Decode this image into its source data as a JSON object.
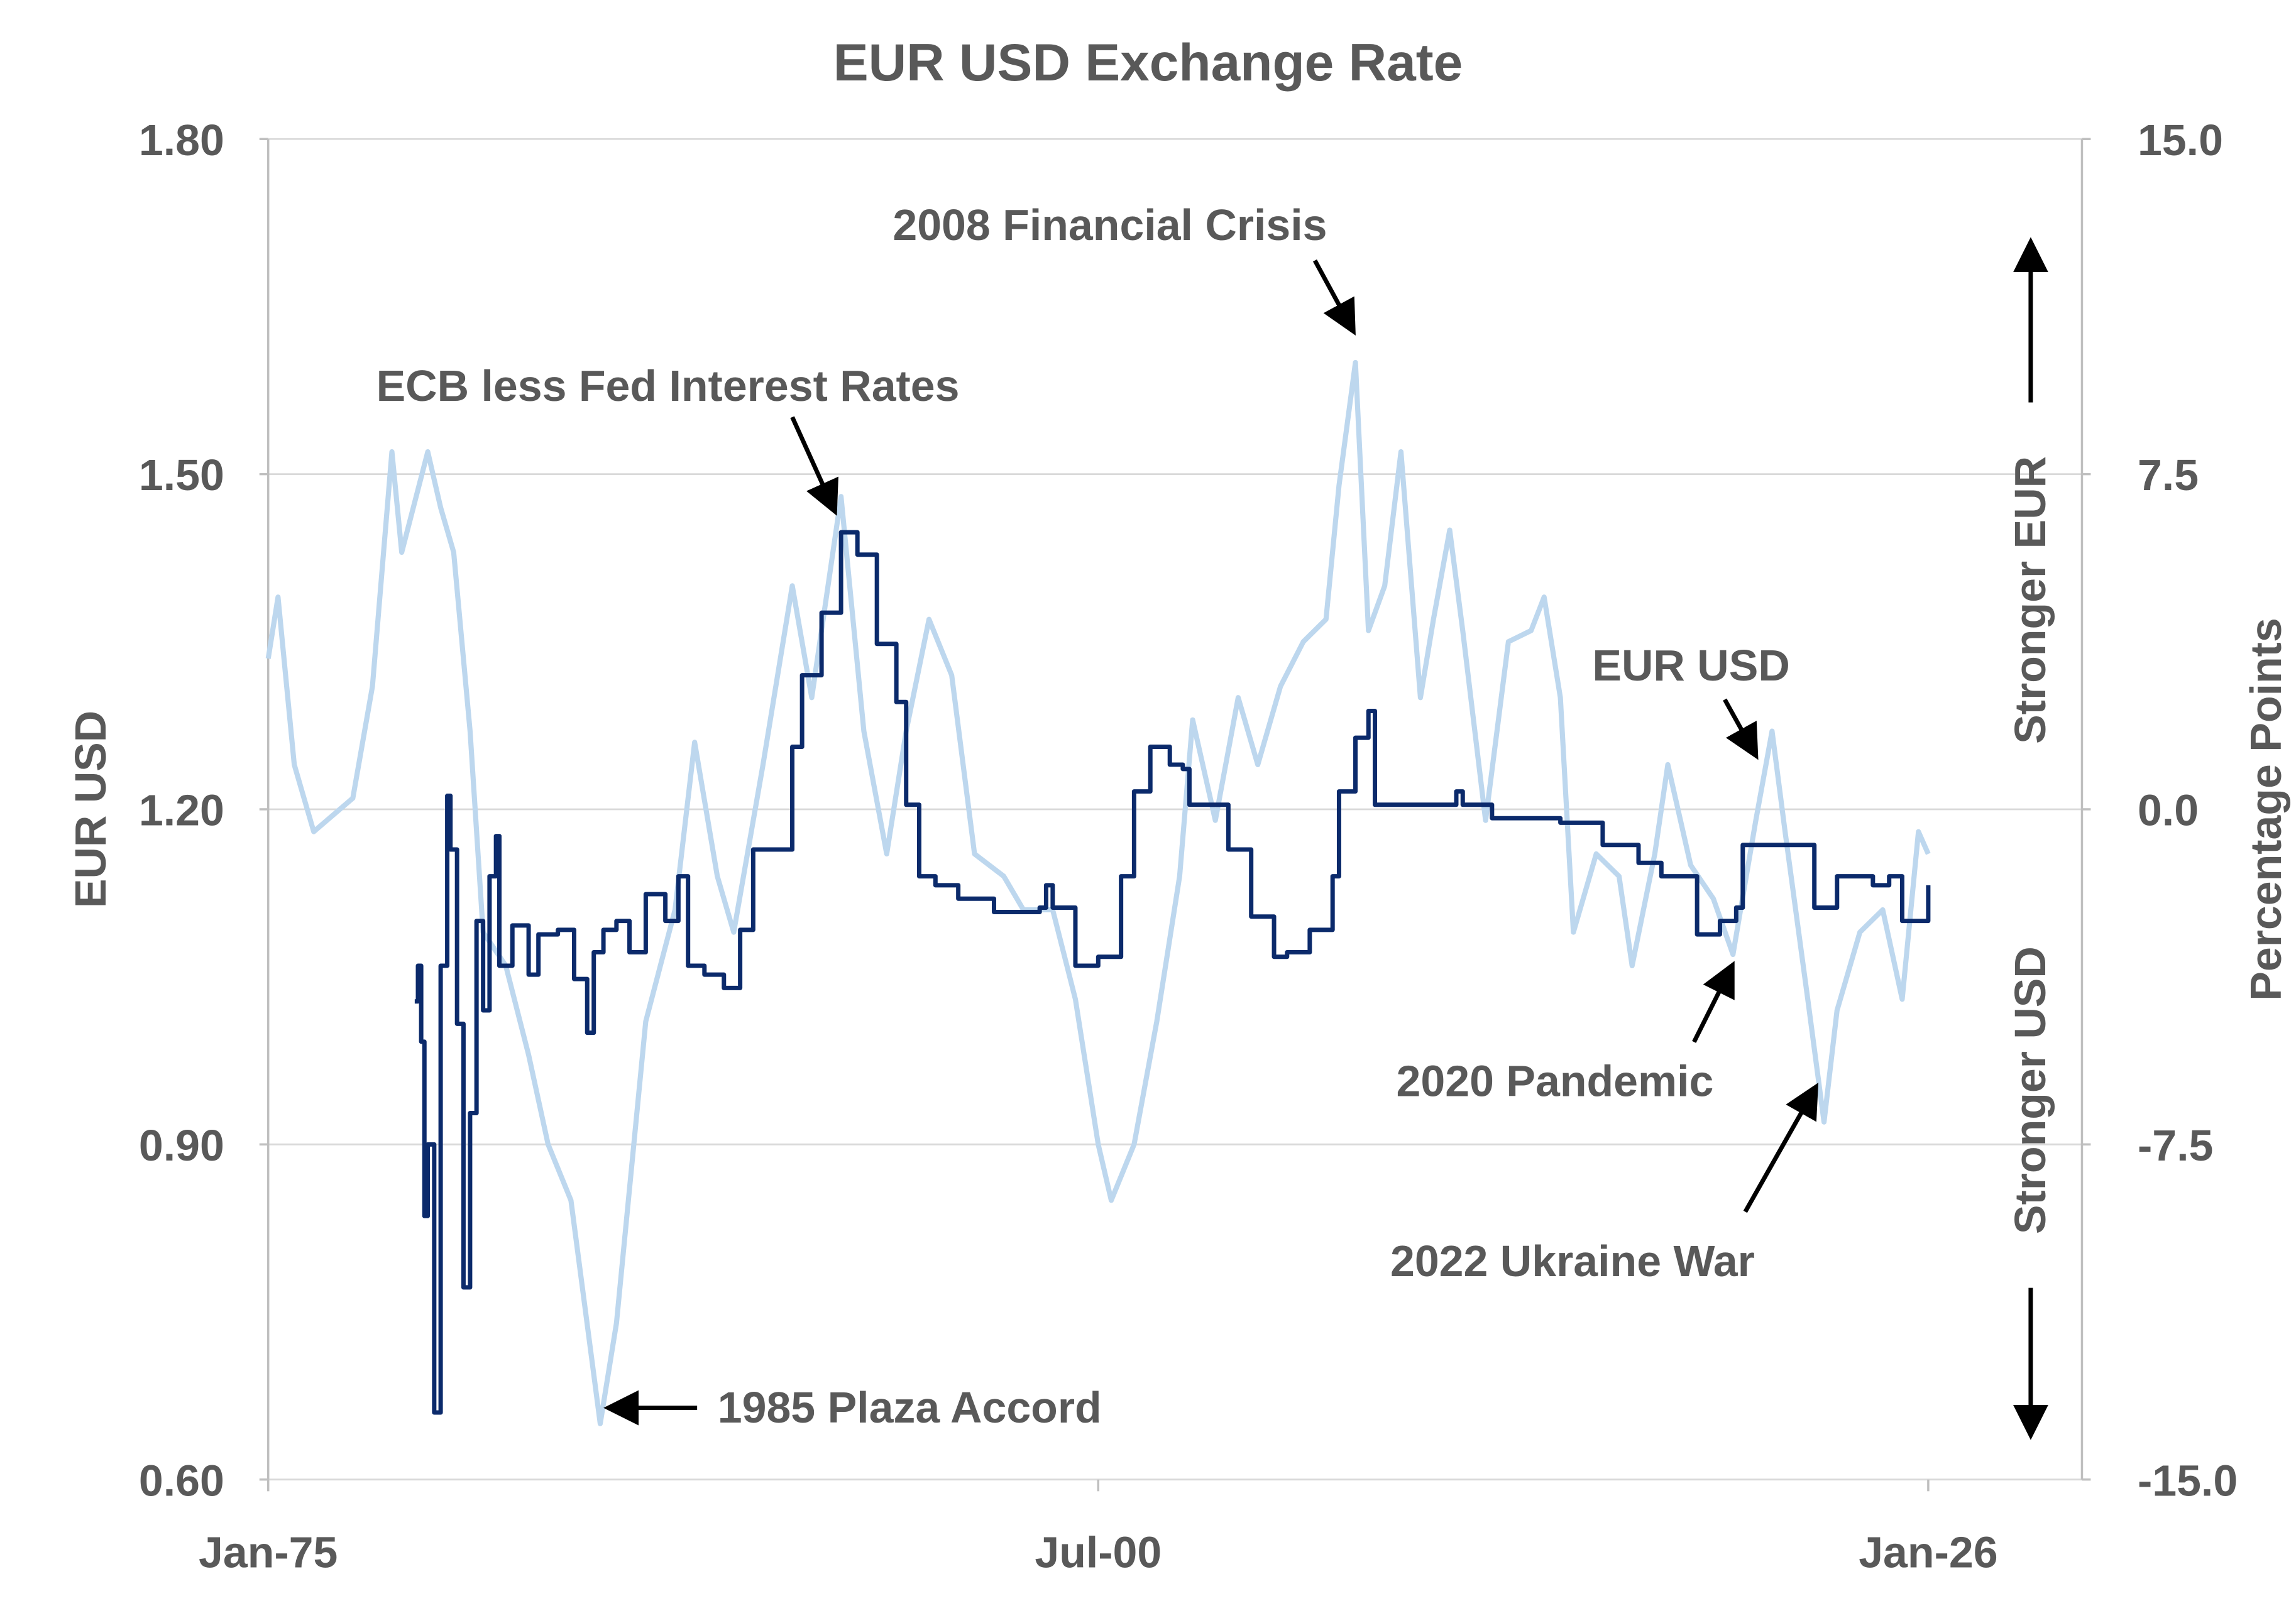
{
  "chart_data": {
    "type": "line",
    "title": "EUR USD Exchange Rate",
    "ylabel": "EUR USD",
    "y2label": "Percentage  Points",
    "xlim": [
      1975.0,
      2026.0
    ],
    "ylim": [
      0.6,
      1.8
    ],
    "y2lim": [
      -15.0,
      15.0
    ],
    "x_ticks": [
      {
        "label": "Jan-75",
        "x": 1975.0
      },
      {
        "label": "Jul-00",
        "x": 2000.5
      },
      {
        "label": "Jan-26",
        "x": 2026.0
      }
    ],
    "y_ticks": [
      {
        "label": "1.80",
        "v": 1.8
      },
      {
        "label": "1.50",
        "v": 1.5
      },
      {
        "label": "1.20",
        "v": 1.2
      },
      {
        "label": "0.90",
        "v": 0.9
      },
      {
        "label": "0.60",
        "v": 0.6
      }
    ],
    "y2_ticks": [
      {
        "label": "15.0",
        "v": 15
      },
      {
        "label": "7.5",
        "v": 7.5
      },
      {
        "label": "0.0",
        "v": 0
      },
      {
        "label": "-7.5",
        "v": -7.5
      },
      {
        "label": "-15.0",
        "v": -15
      }
    ],
    "grid": true,
    "series": [
      {
        "name": "EUR USD",
        "axis": "left",
        "color": "#bdd7ee",
        "x": [
          1975.0,
          1975.3,
          1975.8,
          1976.4,
          1977.6,
          1978.2,
          1978.8,
          1979.1,
          1979.9,
          1980.3,
          1980.7,
          1981.2,
          1981.6,
          1982.3,
          1983.0,
          1983.6,
          1984.3,
          1985.2,
          1985.7,
          1986.6,
          1987.5,
          1988.1,
          1988.8,
          1989.3,
          1990.2,
          1991.1,
          1991.7,
          1992.6,
          1993.3,
          1994.0,
          1994.6,
          1995.3,
          1996.0,
          1996.7,
          1997.6,
          1998.2,
          1999.1,
          1999.8,
          2000.5,
          2000.9,
          2001.6,
          2002.3,
          2003.0,
          2003.4,
          2004.1,
          2004.8,
          2005.4,
          2006.1,
          2006.8,
          2007.5,
          2007.9,
          2008.4,
          2008.8,
          2009.3,
          2009.8,
          2010.4,
          2010.8,
          2011.3,
          2011.7,
          2012.4,
          2013.1,
          2013.8,
          2014.2,
          2014.7,
          2015.1,
          2015.8,
          2016.5,
          2016.9,
          2017.6,
          2018.0,
          2018.7,
          2019.4,
          2020.0,
          2020.7,
          2021.2,
          2021.6,
          2022.3,
          2022.8,
          2023.2,
          2023.9,
          2024.6,
          2025.2,
          2025.7,
          2026.0
        ],
        "y": [
          1.335,
          1.39,
          1.24,
          1.18,
          1.21,
          1.31,
          1.52,
          1.43,
          1.52,
          1.47,
          1.43,
          1.27,
          1.09,
          1.06,
          0.98,
          0.9,
          0.85,
          0.65,
          0.74,
          1.01,
          1.11,
          1.26,
          1.14,
          1.09,
          1.24,
          1.4,
          1.3,
          1.48,
          1.27,
          1.16,
          1.27,
          1.37,
          1.32,
          1.16,
          1.14,
          1.11,
          1.11,
          1.03,
          0.9,
          0.85,
          0.9,
          1.01,
          1.14,
          1.28,
          1.19,
          1.3,
          1.24,
          1.31,
          1.35,
          1.37,
          1.49,
          1.6,
          1.36,
          1.4,
          1.52,
          1.3,
          1.37,
          1.45,
          1.36,
          1.19,
          1.35,
          1.36,
          1.39,
          1.3,
          1.09,
          1.16,
          1.14,
          1.06,
          1.16,
          1.24,
          1.15,
          1.12,
          1.07,
          1.19,
          1.27,
          1.18,
          1.03,
          0.92,
          1.02,
          1.09,
          1.11,
          1.03,
          1.18,
          1.16
        ]
      },
      {
        "name": "ECB less Fed Interest Rates",
        "axis": "right",
        "color": "#0b2a6b",
        "x": [
          1979.5,
          1979.6,
          1979.7,
          1979.8,
          1979.9,
          1980.1,
          1980.3,
          1980.5,
          1980.6,
          1980.8,
          1981.0,
          1981.2,
          1981.4,
          1981.6,
          1981.8,
          1982.0,
          1982.1,
          1982.5,
          1983.0,
          1983.3,
          1983.9,
          1984.4,
          1984.8,
          1985.0,
          1985.3,
          1985.7,
          1986.1,
          1986.6,
          1987.2,
          1987.6,
          1987.9,
          1988.4,
          1989.0,
          1989.5,
          1989.9,
          1990.8,
          1991.1,
          1991.4,
          1992.0,
          1992.6,
          1993.1,
          1993.7,
          1994.3,
          1994.6,
          1995.0,
          1995.5,
          1996.2,
          1997.3,
          1998.7,
          1998.9,
          1999.1,
          1999.8,
          2000.5,
          2001.2,
          2001.6,
          2002.1,
          2002.7,
          2003.1,
          2003.3,
          2004.5,
          2005.2,
          2005.9,
          2006.3,
          2007.0,
          2007.7,
          2007.9,
          2008.4,
          2008.8,
          2009.0,
          2011.1,
          2011.5,
          2011.7,
          2012.6,
          2014.7,
          2016.0,
          2017.1,
          2017.8,
          2018.9,
          2019.6,
          2020.1,
          2020.3,
          2022.1,
          2022.5,
          2023.2,
          2024.3,
          2024.8,
          2025.2,
          2026.0
        ],
        "y": [
          -4.3,
          -3.5,
          -5.2,
          -9.1,
          -7.5,
          -13.5,
          -3.5,
          0.3,
          -0.9,
          -4.8,
          -10.7,
          -6.8,
          -2.5,
          -4.5,
          -1.5,
          -0.6,
          -3.5,
          -2.6,
          -3.7,
          -2.8,
          -2.7,
          -3.8,
          -5.0,
          -3.2,
          -2.7,
          -2.5,
          -3.2,
          -1.9,
          -2.5,
          -1.5,
          -3.5,
          -3.7,
          -4.0,
          -2.7,
          -0.9,
          -0.9,
          1.4,
          3.0,
          4.4,
          6.2,
          5.7,
          3.7,
          2.4,
          0.1,
          -1.5,
          -1.7,
          -2.0,
          -2.3,
          -2.2,
          -1.7,
          -2.2,
          -3.5,
          -3.3,
          -1.5,
          0.4,
          1.4,
          1.0,
          0.9,
          0.1,
          -0.9,
          -2.4,
          -3.3,
          -3.2,
          -2.7,
          -1.5,
          0.4,
          1.6,
          2.2,
          0.1,
          0.1,
          0.4,
          0.1,
          -0.2,
          -0.3,
          -0.8,
          -1.2,
          -1.5,
          -2.8,
          -2.5,
          -2.2,
          -0.8,
          -0.8,
          -2.2,
          -1.5,
          -1.7,
          -1.5,
          -2.5,
          -1.7
        ]
      }
    ],
    "annotations": {
      "financial_crisis": "2008 Financial Crisis",
      "ecb_fed": "ECB less Fed Interest Rates",
      "eurusd": "EUR USD",
      "pandemic": "2020 Pandemic",
      "ukraine": "2022 Ukraine War",
      "plaza": "1985 Plaza Accord",
      "stronger_eur": "Stronger  EUR",
      "stronger_usd": "Stronger  USD"
    }
  }
}
